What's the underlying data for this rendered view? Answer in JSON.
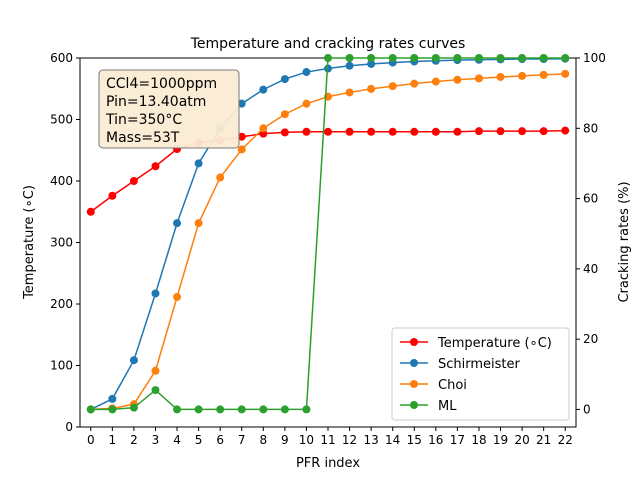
{
  "chart_data": {
    "type": "line",
    "title": "Temperature and cracking rates curves",
    "xlabel": "PFR index",
    "ylabel_left": "Temperature (∘C)",
    "ylabel_right": "Cracking rates (%)",
    "x": [
      0,
      1,
      2,
      3,
      4,
      5,
      6,
      7,
      8,
      9,
      10,
      11,
      12,
      13,
      14,
      15,
      16,
      17,
      18,
      19,
      20,
      21,
      22
    ],
    "xlim": [
      -0.5,
      22.5
    ],
    "ylim_left": [
      0,
      600
    ],
    "ylim_right": [
      -5,
      100
    ],
    "yticks_left": [
      0,
      100,
      200,
      300,
      400,
      500,
      600
    ],
    "yticks_right": [
      0,
      20,
      40,
      60,
      80,
      100
    ],
    "grid": false,
    "legend_position": "lower-right",
    "annotation": {
      "lines": [
        "CCl4=1000ppm",
        "Pin=13.40atm",
        "Tin=350°C",
        "Mass=53T"
      ],
      "position": "top-left"
    },
    "series": [
      {
        "name": "Temperature (∘C)",
        "axis": "left",
        "color": "#ff0000",
        "values": [
          350,
          376,
          400,
          424,
          452,
          462,
          466,
          472,
          477,
          479,
          480,
          480,
          480,
          480,
          480,
          480,
          480,
          480,
          481,
          481,
          481,
          481,
          482
        ]
      },
      {
        "name": "Schirmeister",
        "axis": "right",
        "color": "#1f77b4",
        "values": [
          0,
          3,
          14,
          33,
          53,
          70,
          80,
          87,
          91,
          94,
          96,
          97,
          97.8,
          98.3,
          98.7,
          99,
          99.2,
          99.4,
          99.5,
          99.6,
          99.7,
          99.7,
          99.8
        ]
      },
      {
        "name": "Choi",
        "axis": "right",
        "color": "#ff7f0e",
        "values": [
          0,
          0.3,
          1.5,
          11,
          32,
          53,
          66,
          74,
          80,
          84,
          87,
          89,
          90.2,
          91.2,
          92,
          92.7,
          93.3,
          93.8,
          94.2,
          94.6,
          94.9,
          95.2,
          95.5
        ]
      },
      {
        "name": "ML",
        "axis": "right",
        "color": "#2ca02c",
        "values": [
          0,
          0,
          0.5,
          5.5,
          0,
          0,
          0,
          0,
          0,
          0,
          0,
          100,
          100,
          100,
          100,
          100,
          100,
          100,
          100,
          100,
          100,
          100,
          100
        ]
      }
    ]
  }
}
